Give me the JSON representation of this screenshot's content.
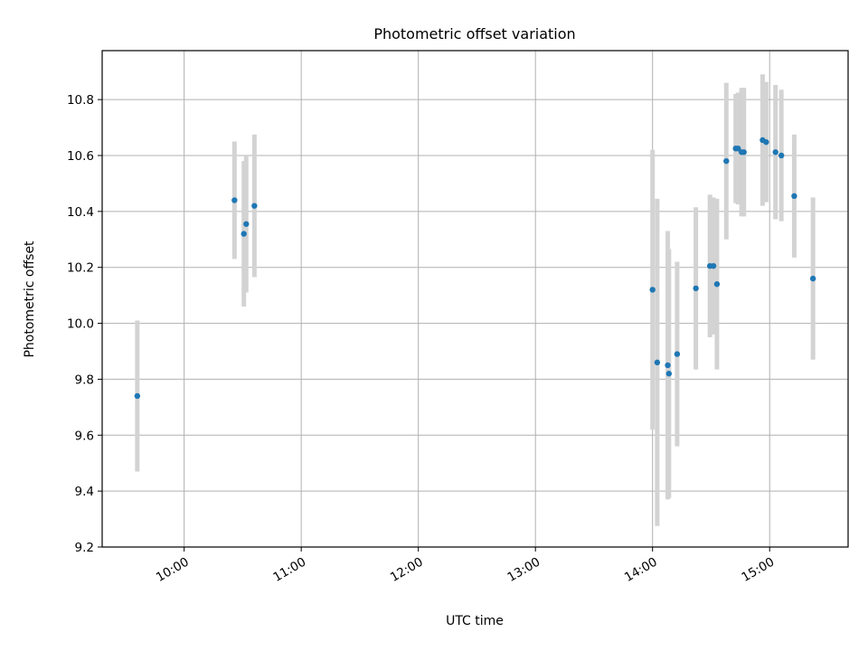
{
  "chart_data": {
    "type": "scatter",
    "title": "Photometric offset variation",
    "xlabel": "UTC time",
    "ylabel": "Photometric offset",
    "grid": true,
    "xlim_hours": [
      9.3,
      15.67
    ],
    "ylim": [
      9.2,
      10.975
    ],
    "x_ticks": [
      {
        "value": 10,
        "label": "10:00"
      },
      {
        "value": 11,
        "label": "11:00"
      },
      {
        "value": 12,
        "label": "12:00"
      },
      {
        "value": 13,
        "label": "13:00"
      },
      {
        "value": 14,
        "label": "14:00"
      },
      {
        "value": 15,
        "label": "15:00"
      }
    ],
    "y_ticks": [
      {
        "value": 9.2,
        "label": "9.2"
      },
      {
        "value": 9.4,
        "label": "9.4"
      },
      {
        "value": 9.6,
        "label": "9.6"
      },
      {
        "value": 9.8,
        "label": "9.8"
      },
      {
        "value": 10.0,
        "label": "10.0"
      },
      {
        "value": 10.2,
        "label": "10.2"
      },
      {
        "value": 10.4,
        "label": "10.4"
      },
      {
        "value": 10.6,
        "label": "10.6"
      },
      {
        "value": 10.8,
        "label": "10.8"
      }
    ],
    "colors": {
      "point": "#1f77b4",
      "errorbar": "#d3d3d3",
      "grid": "#b0b0b0"
    },
    "series": [
      {
        "name": "offset",
        "points": [
          {
            "x": 9.6,
            "y": 9.74,
            "err": 0.27
          },
          {
            "x": 10.43,
            "y": 10.44,
            "err": 0.21
          },
          {
            "x": 10.51,
            "y": 10.32,
            "err": 0.26
          },
          {
            "x": 10.53,
            "y": 10.355,
            "err": 0.245
          },
          {
            "x": 10.6,
            "y": 10.42,
            "err": 0.255
          },
          {
            "x": 14.0,
            "y": 10.12,
            "err": 0.5
          },
          {
            "x": 14.04,
            "y": 9.86,
            "err": 0.585
          },
          {
            "x": 14.13,
            "y": 9.85,
            "err": 0.48
          },
          {
            "x": 14.14,
            "y": 9.82,
            "err": 0.445
          },
          {
            "x": 14.21,
            "y": 9.89,
            "err": 0.33
          },
          {
            "x": 14.37,
            "y": 10.125,
            "err": 0.29
          },
          {
            "x": 14.49,
            "y": 10.205,
            "err": 0.255
          },
          {
            "x": 14.52,
            "y": 10.205,
            "err": 0.245
          },
          {
            "x": 14.55,
            "y": 10.14,
            "err": 0.305
          },
          {
            "x": 14.63,
            "y": 10.58,
            "err": 0.28
          },
          {
            "x": 14.71,
            "y": 10.625,
            "err": 0.195
          },
          {
            "x": 14.73,
            "y": 10.625,
            "err": 0.2
          },
          {
            "x": 14.76,
            "y": 10.612,
            "err": 0.23
          },
          {
            "x": 14.78,
            "y": 10.612,
            "err": 0.23
          },
          {
            "x": 14.94,
            "y": 10.655,
            "err": 0.235
          },
          {
            "x": 14.97,
            "y": 10.648,
            "err": 0.215
          },
          {
            "x": 15.05,
            "y": 10.612,
            "err": 0.24
          },
          {
            "x": 15.1,
            "y": 10.6,
            "err": 0.235
          },
          {
            "x": 15.21,
            "y": 10.455,
            "err": 0.22
          },
          {
            "x": 15.37,
            "y": 10.16,
            "err": 0.29
          }
        ]
      }
    ]
  }
}
